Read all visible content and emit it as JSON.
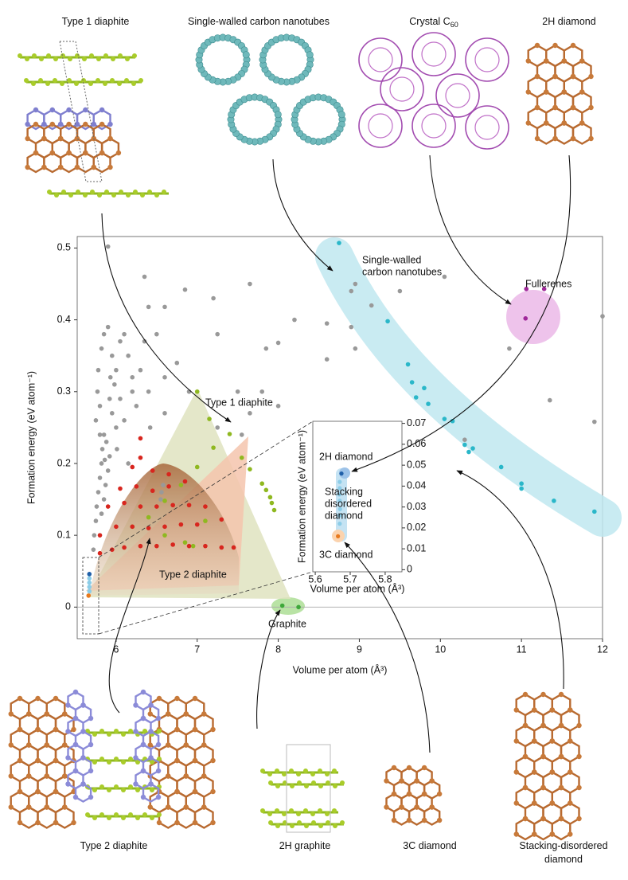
{
  "structures": {
    "top": [
      {
        "lines": [
          "Type 1 diaphite"
        ]
      },
      {
        "lines": [
          "Single-walled carbon nanotubes"
        ]
      },
      {
        "lines": [
          "Crystal C"
        ],
        "sub": "60"
      },
      {
        "lines": [
          "2H diamond"
        ]
      }
    ],
    "bottom": [
      {
        "lines": [
          "Type 2 diaphite"
        ]
      },
      {
        "lines": [
          "2H graphite"
        ]
      },
      {
        "lines": [
          "3C diamond"
        ]
      },
      {
        "lines": [
          "Stacking-disordered",
          "diamond"
        ]
      }
    ]
  },
  "chart_data": [
    {
      "type": "scatter",
      "xlabel": "Volume per atom (Å³)",
      "ylabel": "Formation energy (eV atom⁻¹)",
      "xlim": [
        5.52,
        12
      ],
      "ylim": [
        -0.044,
        0.516
      ],
      "xticks": [
        6,
        7,
        8,
        9,
        10,
        11,
        12
      ],
      "yticks": [
        0,
        0.1,
        0.2,
        0.3,
        0.4,
        0.5
      ],
      "hline": 0,
      "annotations": [
        {
          "lines": [
            "Single-walled",
            "carbon nanotubes"
          ]
        },
        {
          "lines": [
            "Fullerenes"
          ]
        },
        {
          "lines": [
            "Type 1 diaphite"
          ]
        },
        {
          "lines": [
            "Type 2 diaphite"
          ]
        },
        {
          "lines": [
            "Graphite"
          ]
        }
      ],
      "series": [
        {
          "color": "#999999",
          "x": [
            5.9,
            6.35,
            6.85,
            7.2,
            6.4,
            6.6,
            7.65,
            8.95,
            9.5,
            9.15,
            10.05,
            12.0,
            8.9,
            7.25,
            7.85,
            8.2,
            8.6,
            8.0,
            8.6,
            8.9,
            8.95,
            10.85,
            11.35,
            11.9,
            6.75,
            6.6,
            6.9,
            7.5,
            7.8,
            8.0,
            7.25,
            7.65,
            10.3,
            9.25,
            7.55,
            5.72,
            5.73,
            5.75,
            5.76,
            5.78,
            5.8,
            5.82,
            5.83,
            5.85,
            5.75,
            5.8,
            5.77,
            5.78,
            5.82,
            5.85,
            5.9,
            5.95,
            6.0,
            5.98,
            5.92,
            5.95,
            6.0,
            5.88,
            5.92,
            5.9,
            5.87,
            5.85,
            5.82,
            6.05,
            6.1,
            6.15,
            6.2,
            6.05,
            6.1,
            6.2,
            6.3,
            6.35,
            6.25,
            6.4,
            6.5,
            5.8,
            5.86,
            5.93,
            6.01,
            6.15,
            6.55,
            6.58,
            6.56,
            6.42,
            6.6
          ],
          "values": [
            0.502,
            0.46,
            0.442,
            0.43,
            0.418,
            0.418,
            0.45,
            0.45,
            0.44,
            0.42,
            0.46,
            0.405,
            0.44,
            0.38,
            0.36,
            0.4,
            0.395,
            0.368,
            0.345,
            0.39,
            0.36,
            0.36,
            0.288,
            0.258,
            0.34,
            0.32,
            0.3,
            0.3,
            0.3,
            0.28,
            0.25,
            0.27,
            0.233,
            0.25,
            0.24,
            0.08,
            0.1,
            0.12,
            0.14,
            0.16,
            0.18,
            0.2,
            0.22,
            0.24,
            0.26,
            0.28,
            0.3,
            0.33,
            0.36,
            0.38,
            0.39,
            0.35,
            0.33,
            0.31,
            0.29,
            0.27,
            0.25,
            0.23,
            0.21,
            0.19,
            0.17,
            0.15,
            0.13,
            0.37,
            0.38,
            0.35,
            0.32,
            0.29,
            0.26,
            0.3,
            0.33,
            0.37,
            0.28,
            0.3,
            0.38,
            0.24,
            0.205,
            0.32,
            0.22,
            0.2,
            0.15,
            0.17,
            0.16,
            0.25,
            0.27
          ]
        },
        {
          "color": "#2ab7c9",
          "x": [
            8.75,
            9.35,
            9.6,
            9.65,
            9.7,
            9.8,
            9.85,
            10.05,
            10.15,
            10.3,
            10.35,
            10.4,
            10.75,
            11.0,
            11.0,
            11.4,
            11.9
          ],
          "values": [
            0.507,
            0.398,
            0.338,
            0.313,
            0.292,
            0.305,
            0.283,
            0.262,
            0.259,
            0.226,
            0.216,
            0.221,
            0.195,
            0.172,
            0.165,
            0.148,
            0.133
          ]
        },
        {
          "color": "#a0289a",
          "x": [
            11.06,
            11.28,
            11.05
          ],
          "values": [
            0.443,
            0.443,
            0.402
          ]
        },
        {
          "color": "#8fb820",
          "x": [
            7.0,
            7.15,
            7.4,
            7.55,
            7.65,
            7.8,
            7.85,
            7.9,
            7.92,
            7.95,
            7.2,
            7.0,
            6.8,
            6.6,
            6.4,
            6.2,
            7.1,
            6.85,
            6.95,
            6.6
          ],
          "values": [
            0.3,
            0.262,
            0.241,
            0.208,
            0.192,
            0.172,
            0.163,
            0.153,
            0.145,
            0.135,
            0.222,
            0.195,
            0.17,
            0.148,
            0.125,
            0.112,
            0.12,
            0.09,
            0.085,
            0.1
          ]
        },
        {
          "color": "#d8261e",
          "x": [
            6.3,
            6.3,
            6.2,
            6.45,
            6.65,
            6.05,
            6.25,
            6.45,
            6.65,
            6.85,
            5.9,
            6.1,
            6.3,
            6.5,
            6.7,
            6.9,
            7.1,
            7.3,
            5.8,
            6.0,
            6.2,
            6.4,
            6.6,
            6.8,
            7.0,
            5.8,
            5.95,
            6.1,
            6.3,
            6.5,
            6.7,
            6.9,
            7.1,
            7.3,
            7.45
          ],
          "values": [
            0.235,
            0.208,
            0.195,
            0.19,
            0.185,
            0.165,
            0.168,
            0.162,
            0.168,
            0.175,
            0.14,
            0.145,
            0.14,
            0.14,
            0.142,
            0.142,
            0.14,
            0.122,
            0.1,
            0.112,
            0.112,
            0.11,
            0.112,
            0.115,
            0.115,
            0.075,
            0.08,
            0.083,
            0.085,
            0.085,
            0.087,
            0.085,
            0.085,
            0.083,
            0.083
          ]
        },
        {
          "color": "#3ea83a",
          "x": [
            8.05,
            8.25
          ],
          "values": [
            0.002,
            0.0
          ]
        },
        {
          "color": "#8ccde8",
          "x": [
            5.67,
            5.67,
            5.67,
            5.67
          ],
          "values": [
            0.022,
            0.028,
            0.034,
            0.04
          ]
        },
        {
          "color": "#1f5fa8",
          "x": [
            5.67
          ],
          "values": [
            0.046
          ]
        },
        {
          "color": "#e87a1e",
          "x": [
            5.66
          ],
          "values": [
            0.016
          ]
        }
      ]
    },
    {
      "type": "scatter",
      "xlabel": "Volume per atom (Å³)",
      "ylabel": "Formation energy (eV atom⁻¹)",
      "xlim": [
        5.593,
        5.848
      ],
      "ylim": [
        -0.001,
        0.071
      ],
      "xticks": [
        5.6,
        5.7,
        5.8
      ],
      "yticks": [
        0,
        0.01,
        0.02,
        0.03,
        0.04,
        0.05,
        0.06,
        0.07
      ],
      "annotations": [
        {
          "lines": [
            "2H diamond"
          ]
        },
        {
          "lines": [
            "Stacking",
            "disordered",
            "diamond"
          ]
        },
        {
          "lines": [
            "3C diamond"
          ]
        }
      ],
      "series": [
        {
          "color": "#8ccde8",
          "x": [
            5.67,
            5.67,
            5.671,
            5.67,
            5.669,
            5.67,
            5.67
          ],
          "values": [
            0.022,
            0.026,
            0.029,
            0.033,
            0.036,
            0.039,
            0.042
          ]
        },
        {
          "color": "#1f5fa8",
          "x": [
            5.675
          ],
          "values": [
            0.046
          ]
        },
        {
          "color": "#e87a1e",
          "x": [
            5.665
          ],
          "values": [
            0.016
          ]
        }
      ]
    }
  ]
}
